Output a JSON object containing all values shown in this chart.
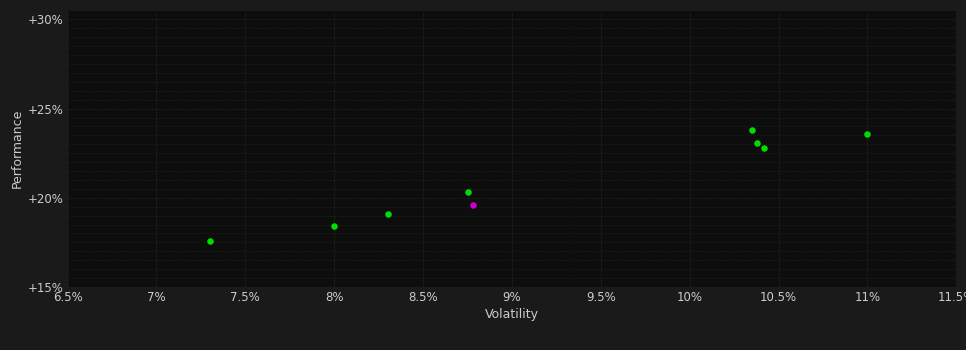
{
  "background_color": "#1a1a1a",
  "plot_bg_color": "#0d0d0d",
  "grid_color": "#1e3a1e",
  "grid_style": ":",
  "xlabel": "Volatility",
  "ylabel": "Performance",
  "xlim": [
    0.065,
    0.115
  ],
  "ylim": [
    0.15,
    0.305
  ],
  "xticks": [
    0.065,
    0.07,
    0.075,
    0.08,
    0.085,
    0.09,
    0.095,
    0.1,
    0.105,
    0.11,
    0.115
  ],
  "yticks": [
    0.15,
    0.2,
    0.25,
    0.3
  ],
  "yticks_minor": [
    0.155,
    0.16,
    0.165,
    0.17,
    0.175,
    0.18,
    0.185,
    0.19,
    0.195,
    0.205,
    0.21,
    0.215,
    0.22,
    0.225,
    0.23,
    0.235,
    0.24,
    0.245,
    0.255,
    0.26,
    0.265,
    0.27,
    0.275,
    0.28,
    0.285,
    0.29,
    0.295
  ],
  "xtick_labels": [
    "6.5%",
    "7%",
    "7.5%",
    "8%",
    "8.5%",
    "9%",
    "9.5%",
    "10%",
    "10.5%",
    "11%",
    "11.5%"
  ],
  "ytick_labels": [
    "+15%",
    "+20%",
    "+25%",
    "+30%"
  ],
  "green_points": [
    [
      0.073,
      0.176
    ],
    [
      0.08,
      0.184
    ],
    [
      0.083,
      0.191
    ],
    [
      0.0875,
      0.2035
    ],
    [
      0.1035,
      0.238
    ],
    [
      0.1038,
      0.231
    ],
    [
      0.1042,
      0.228
    ],
    [
      0.11,
      0.236
    ]
  ],
  "magenta_points": [
    [
      0.0878,
      0.196
    ]
  ],
  "green_color": "#00dd00",
  "magenta_color": "#cc00cc",
  "dot_size": 22,
  "tick_color": "#cccccc",
  "label_color": "#cccccc",
  "tick_fontsize": 8.5,
  "label_fontsize": 9
}
